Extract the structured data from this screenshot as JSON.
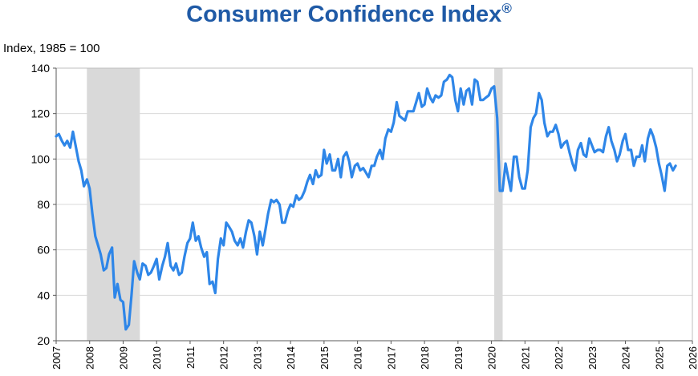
{
  "chart_data": {
    "type": "line",
    "title": "Consumer Confidence Index",
    "title_mark": "®",
    "ylabel": "Index, 1985 = 100",
    "xlabel": "",
    "ylim": [
      20,
      140
    ],
    "xlim": [
      2007,
      2026
    ],
    "yticks": [
      "20",
      "40",
      "60",
      "80",
      "100",
      "120",
      "140"
    ],
    "xticks": [
      "2007",
      "2008",
      "2009",
      "2010",
      "2011",
      "2012",
      "2013",
      "2014",
      "2015",
      "2016",
      "2017",
      "2018",
      "2019",
      "2020",
      "2021",
      "2022",
      "2023",
      "2024",
      "2025",
      "2026"
    ],
    "grid": true,
    "line_color": "#2e86e8",
    "recession_color": "#d9d9d9",
    "recessions": [
      [
        2007.917,
        2009.5
      ],
      [
        2020.083,
        2020.333
      ]
    ],
    "series": [
      {
        "values": [
          [
            2007.0,
            110
          ],
          [
            2007.08,
            111
          ],
          [
            2007.17,
            108
          ],
          [
            2007.25,
            106
          ],
          [
            2007.33,
            108
          ],
          [
            2007.42,
            105
          ],
          [
            2007.5,
            112
          ],
          [
            2007.58,
            106
          ],
          [
            2007.67,
            99
          ],
          [
            2007.75,
            95
          ],
          [
            2007.83,
            88
          ],
          [
            2007.92,
            91
          ],
          [
            2008.0,
            87
          ],
          [
            2008.08,
            76
          ],
          [
            2008.17,
            66
          ],
          [
            2008.25,
            62
          ],
          [
            2008.33,
            58
          ],
          [
            2008.42,
            51
          ],
          [
            2008.5,
            52
          ],
          [
            2008.58,
            58
          ],
          [
            2008.67,
            61
          ],
          [
            2008.75,
            39
          ],
          [
            2008.83,
            45
          ],
          [
            2008.92,
            38
          ],
          [
            2009.0,
            37
          ],
          [
            2009.08,
            25
          ],
          [
            2009.17,
            27
          ],
          [
            2009.25,
            40
          ],
          [
            2009.33,
            55
          ],
          [
            2009.42,
            50
          ],
          [
            2009.5,
            47
          ],
          [
            2009.58,
            54
          ],
          [
            2009.67,
            53
          ],
          [
            2009.75,
            49
          ],
          [
            2009.83,
            50
          ],
          [
            2009.92,
            53
          ],
          [
            2010.0,
            56
          ],
          [
            2010.08,
            47
          ],
          [
            2010.17,
            53
          ],
          [
            2010.25,
            57
          ],
          [
            2010.33,
            63
          ],
          [
            2010.42,
            53
          ],
          [
            2010.5,
            51
          ],
          [
            2010.58,
            54
          ],
          [
            2010.67,
            49
          ],
          [
            2010.75,
            50
          ],
          [
            2010.83,
            57
          ],
          [
            2010.92,
            63
          ],
          [
            2011.0,
            65
          ],
          [
            2011.08,
            72
          ],
          [
            2011.17,
            64
          ],
          [
            2011.25,
            66
          ],
          [
            2011.33,
            61
          ],
          [
            2011.42,
            57
          ],
          [
            2011.5,
            59
          ],
          [
            2011.58,
            45
          ],
          [
            2011.67,
            46
          ],
          [
            2011.75,
            41
          ],
          [
            2011.83,
            56
          ],
          [
            2011.92,
            65
          ],
          [
            2012.0,
            62
          ],
          [
            2012.08,
            72
          ],
          [
            2012.17,
            70
          ],
          [
            2012.25,
            68
          ],
          [
            2012.33,
            64
          ],
          [
            2012.42,
            62
          ],
          [
            2012.5,
            65
          ],
          [
            2012.58,
            61
          ],
          [
            2012.67,
            68
          ],
          [
            2012.75,
            73
          ],
          [
            2012.83,
            72
          ],
          [
            2012.92,
            66
          ],
          [
            2013.0,
            58
          ],
          [
            2013.08,
            68
          ],
          [
            2013.17,
            62
          ],
          [
            2013.25,
            69
          ],
          [
            2013.33,
            76
          ],
          [
            2013.42,
            82
          ],
          [
            2013.5,
            81
          ],
          [
            2013.58,
            82
          ],
          [
            2013.67,
            80
          ],
          [
            2013.75,
            72
          ],
          [
            2013.83,
            72
          ],
          [
            2013.92,
            77
          ],
          [
            2014.0,
            80
          ],
          [
            2014.08,
            79
          ],
          [
            2014.17,
            84
          ],
          [
            2014.25,
            82
          ],
          [
            2014.33,
            83
          ],
          [
            2014.42,
            86
          ],
          [
            2014.5,
            90
          ],
          [
            2014.58,
            93
          ],
          [
            2014.67,
            89
          ],
          [
            2014.75,
            95
          ],
          [
            2014.83,
            92
          ],
          [
            2014.92,
            93
          ],
          [
            2015.0,
            104
          ],
          [
            2015.08,
            98
          ],
          [
            2015.17,
            102
          ],
          [
            2015.25,
            95
          ],
          [
            2015.33,
            95
          ],
          [
            2015.42,
            100
          ],
          [
            2015.5,
            92
          ],
          [
            2015.58,
            101
          ],
          [
            2015.67,
            103
          ],
          [
            2015.75,
            99
          ],
          [
            2015.83,
            92
          ],
          [
            2015.92,
            97
          ],
          [
            2016.0,
            98
          ],
          [
            2016.08,
            95
          ],
          [
            2016.17,
            96
          ],
          [
            2016.25,
            94
          ],
          [
            2016.33,
            92
          ],
          [
            2016.42,
            97
          ],
          [
            2016.5,
            97
          ],
          [
            2016.58,
            101
          ],
          [
            2016.67,
            104
          ],
          [
            2016.75,
            100
          ],
          [
            2016.83,
            109
          ],
          [
            2016.92,
            113
          ],
          [
            2017.0,
            112
          ],
          [
            2017.08,
            116
          ],
          [
            2017.17,
            125
          ],
          [
            2017.25,
            119
          ],
          [
            2017.33,
            118
          ],
          [
            2017.42,
            117
          ],
          [
            2017.5,
            121
          ],
          [
            2017.58,
            121
          ],
          [
            2017.67,
            121
          ],
          [
            2017.75,
            125
          ],
          [
            2017.83,
            129
          ],
          [
            2017.92,
            123
          ],
          [
            2018.0,
            124
          ],
          [
            2018.08,
            131
          ],
          [
            2018.17,
            127
          ],
          [
            2018.25,
            125
          ],
          [
            2018.33,
            128
          ],
          [
            2018.42,
            127
          ],
          [
            2018.5,
            128
          ],
          [
            2018.58,
            134
          ],
          [
            2018.67,
            135
          ],
          [
            2018.75,
            137
          ],
          [
            2018.83,
            136
          ],
          [
            2018.92,
            126
          ],
          [
            2019.0,
            121
          ],
          [
            2019.08,
            131
          ],
          [
            2019.17,
            124
          ],
          [
            2019.25,
            130
          ],
          [
            2019.33,
            131
          ],
          [
            2019.42,
            124
          ],
          [
            2019.5,
            135
          ],
          [
            2019.58,
            134
          ],
          [
            2019.67,
            126
          ],
          [
            2019.75,
            126
          ],
          [
            2019.83,
            127
          ],
          [
            2019.92,
            128
          ],
          [
            2020.0,
            131
          ],
          [
            2020.08,
            132
          ],
          [
            2020.17,
            118
          ],
          [
            2020.25,
            86
          ],
          [
            2020.33,
            86
          ],
          [
            2020.42,
            98
          ],
          [
            2020.5,
            92
          ],
          [
            2020.58,
            86
          ],
          [
            2020.67,
            101
          ],
          [
            2020.75,
            101
          ],
          [
            2020.83,
            92
          ],
          [
            2020.92,
            87
          ],
          [
            2021.0,
            87
          ],
          [
            2021.08,
            95
          ],
          [
            2021.17,
            114
          ],
          [
            2021.25,
            118
          ],
          [
            2021.33,
            120
          ],
          [
            2021.42,
            129
          ],
          [
            2021.5,
            126
          ],
          [
            2021.58,
            116
          ],
          [
            2021.67,
            110
          ],
          [
            2021.75,
            112
          ],
          [
            2021.83,
            112
          ],
          [
            2021.92,
            115
          ],
          [
            2022.0,
            111
          ],
          [
            2022.08,
            105
          ],
          [
            2022.17,
            107
          ],
          [
            2022.25,
            108
          ],
          [
            2022.33,
            103
          ],
          [
            2022.42,
            98
          ],
          [
            2022.5,
            95
          ],
          [
            2022.58,
            104
          ],
          [
            2022.67,
            107
          ],
          [
            2022.75,
            102
          ],
          [
            2022.83,
            101
          ],
          [
            2022.92,
            109
          ],
          [
            2023.0,
            106
          ],
          [
            2023.08,
            103
          ],
          [
            2023.17,
            104
          ],
          [
            2023.25,
            104
          ],
          [
            2023.33,
            103
          ],
          [
            2023.42,
            110
          ],
          [
            2023.5,
            114
          ],
          [
            2023.58,
            108
          ],
          [
            2023.67,
            104
          ],
          [
            2023.75,
            99
          ],
          [
            2023.83,
            102
          ],
          [
            2023.92,
            108
          ],
          [
            2024.0,
            111
          ],
          [
            2024.08,
            104
          ],
          [
            2024.17,
            104
          ],
          [
            2024.25,
            97
          ],
          [
            2024.33,
            101
          ],
          [
            2024.42,
            101
          ],
          [
            2024.5,
            106
          ],
          [
            2024.58,
            99
          ],
          [
            2024.67,
            109
          ],
          [
            2024.75,
            113
          ],
          [
            2024.83,
            110
          ],
          [
            2024.92,
            105
          ],
          [
            2025.0,
            98
          ],
          [
            2025.08,
            93
          ],
          [
            2025.17,
            86
          ],
          [
            2025.25,
            97
          ],
          [
            2025.33,
            98
          ],
          [
            2025.42,
            95
          ],
          [
            2025.5,
            97
          ]
        ]
      }
    ]
  }
}
